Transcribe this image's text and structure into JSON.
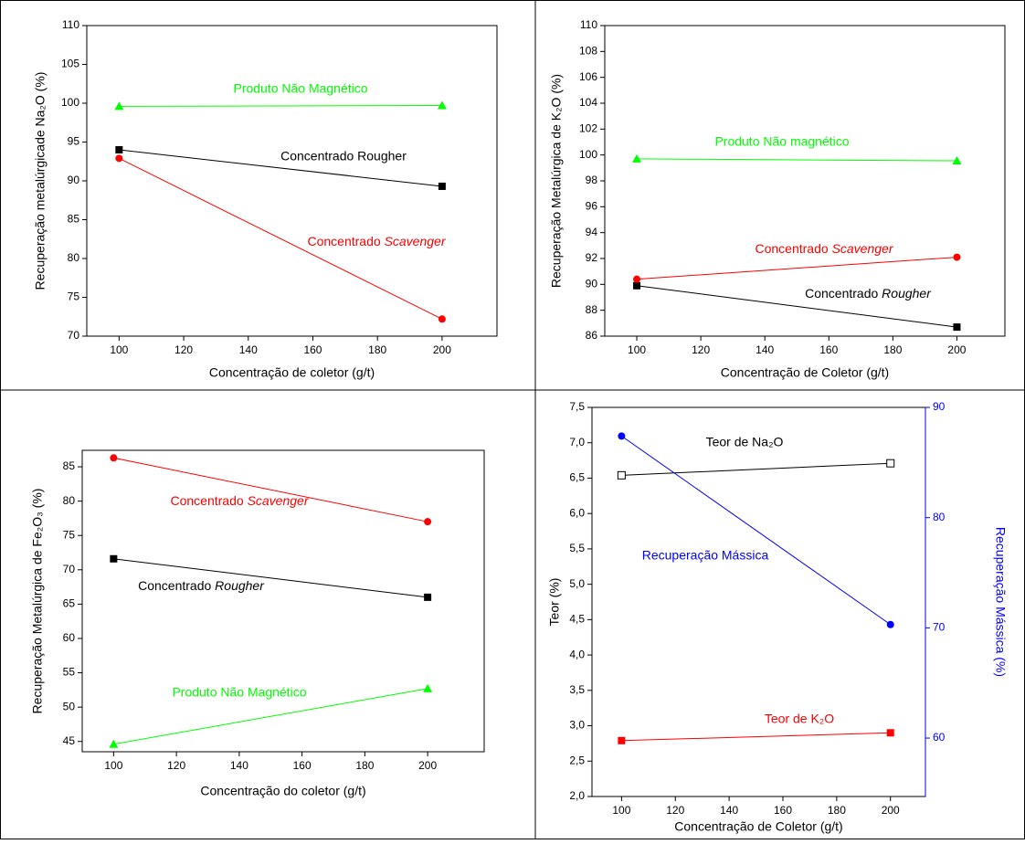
{
  "chart_data": [
    {
      "type": "line",
      "x_label": "Concentração de coletor (g/t)",
      "y_label": "Recuperação metalúrgicade Na₂O (%)",
      "x": [
        100,
        200
      ],
      "xlim": [
        90,
        217
      ],
      "xticks": [
        100,
        120,
        140,
        160,
        180,
        200
      ],
      "ylim": [
        70,
        110
      ],
      "yticks": [
        70,
        75,
        80,
        85,
        90,
        95,
        100,
        105,
        110
      ],
      "series": [
        {
          "name": "Produto Não Magnético",
          "color": "#00ff00",
          "marker": "triangle",
          "italic_last_word": false,
          "values": [
            99.6,
            99.7
          ]
        },
        {
          "name": "Concentrado Rougher",
          "color": "#000000",
          "marker": "square",
          "italic_last_word": false,
          "values": [
            94.0,
            89.3
          ]
        },
        {
          "name": "Concentrado Scavenger",
          "color": "#ff0000",
          "marker": "circle",
          "italic_last_word": true,
          "values": [
            92.9,
            72.2
          ]
        }
      ]
    },
    {
      "type": "line",
      "x_label": "Concentração de Coletor (g/t)",
      "y_label": "Recuperação Metalúrgica de K₂O (%)",
      "x": [
        100,
        200
      ],
      "xlim": [
        90,
        215
      ],
      "xticks": [
        100,
        120,
        140,
        160,
        180,
        200
      ],
      "ylim": [
        86,
        110
      ],
      "yticks": [
        86,
        88,
        90,
        92,
        94,
        96,
        98,
        100,
        102,
        104,
        106,
        108,
        110
      ],
      "series": [
        {
          "name": "Produto Não magnético",
          "color": "#00ff00",
          "marker": "triangle",
          "italic_last_word": false,
          "values": [
            99.7,
            99.55
          ]
        },
        {
          "name": "Concentrado Rougher",
          "color": "#000000",
          "marker": "square",
          "italic_last_word": true,
          "values": [
            89.9,
            86.7
          ]
        },
        {
          "name": "Concentrado Scavenger",
          "color": "#ff0000",
          "marker": "circle",
          "italic_last_word": true,
          "values": [
            90.4,
            92.1
          ]
        }
      ]
    },
    {
      "type": "line",
      "x_label": "Concentração do coletor (g/t)",
      "y_label": "Recuperação Metalúrgica de Fe₂O₃ (%)",
      "x": [
        100,
        200
      ],
      "xlim": [
        90,
        218
      ],
      "xticks": [
        100,
        120,
        140,
        160,
        180,
        200
      ],
      "ylim": [
        43.5,
        87.4
      ],
      "yticks": [
        45,
        50,
        55,
        60,
        65,
        70,
        75,
        80,
        85
      ],
      "series": [
        {
          "name": "Concentrado Scavenger",
          "color": "#ff0000",
          "marker": "circle",
          "italic_last_word": true,
          "values": [
            86.3,
            77.0
          ]
        },
        {
          "name": "Concentrado Rougher",
          "color": "#000000",
          "marker": "square",
          "italic_last_word": true,
          "values": [
            71.6,
            66.0
          ]
        },
        {
          "name": "Produto Não Magnético",
          "color": "#00ff00",
          "marker": "triangle",
          "italic_last_word": false,
          "values": [
            44.6,
            52.7
          ]
        }
      ]
    },
    {
      "type": "line",
      "x_label": "Concentração de Coletor (g/t)",
      "y_label": "Teor (%)",
      "y2_label": "Recuperação Mássica (%)",
      "y2_color": "#0000ff",
      "x": [
        100,
        200
      ],
      "xlim": [
        89,
        213
      ],
      "xticks": [
        100,
        120,
        140,
        160,
        180,
        200
      ],
      "ylim": [
        2.0,
        7.5
      ],
      "yticks": [
        {
          "value": 2.0,
          "label": "2,0"
        },
        {
          "value": 2.5,
          "label": "2,5"
        },
        {
          "value": 3.0,
          "label": "3,0"
        },
        {
          "value": 3.5,
          "label": "3,5"
        },
        {
          "value": 4.0,
          "label": "4,0"
        },
        {
          "value": 4.5,
          "label": "4,5"
        },
        {
          "value": 5.0,
          "label": "5,0"
        },
        {
          "value": 5.5,
          "label": "5,5"
        },
        {
          "value": 6.0,
          "label": "6,0"
        },
        {
          "value": 6.5,
          "label": "6,5"
        },
        {
          "value": 7.0,
          "label": "7,0"
        },
        {
          "value": 7.5,
          "label": "7,5"
        }
      ],
      "y2lim": [
        54.7,
        90
      ],
      "y2ticks": [
        60,
        70,
        80,
        90
      ],
      "series": [
        {
          "name": "Teor de Na₂O",
          "color": "#000000",
          "marker": "open-square",
          "italic_last_word": false,
          "values": [
            6.54,
            6.71
          ]
        },
        {
          "name": "Recuperação Mássica",
          "color": "#0000ff",
          "marker": "circle",
          "italic_last_word": false,
          "axis": "y2",
          "values": [
            87.4,
            70.3
          ]
        },
        {
          "name": "Teor de K₂O",
          "color": "#ff0000",
          "marker": "square",
          "italic_last_word": false,
          "values": [
            2.79,
            2.9
          ]
        }
      ]
    }
  ]
}
